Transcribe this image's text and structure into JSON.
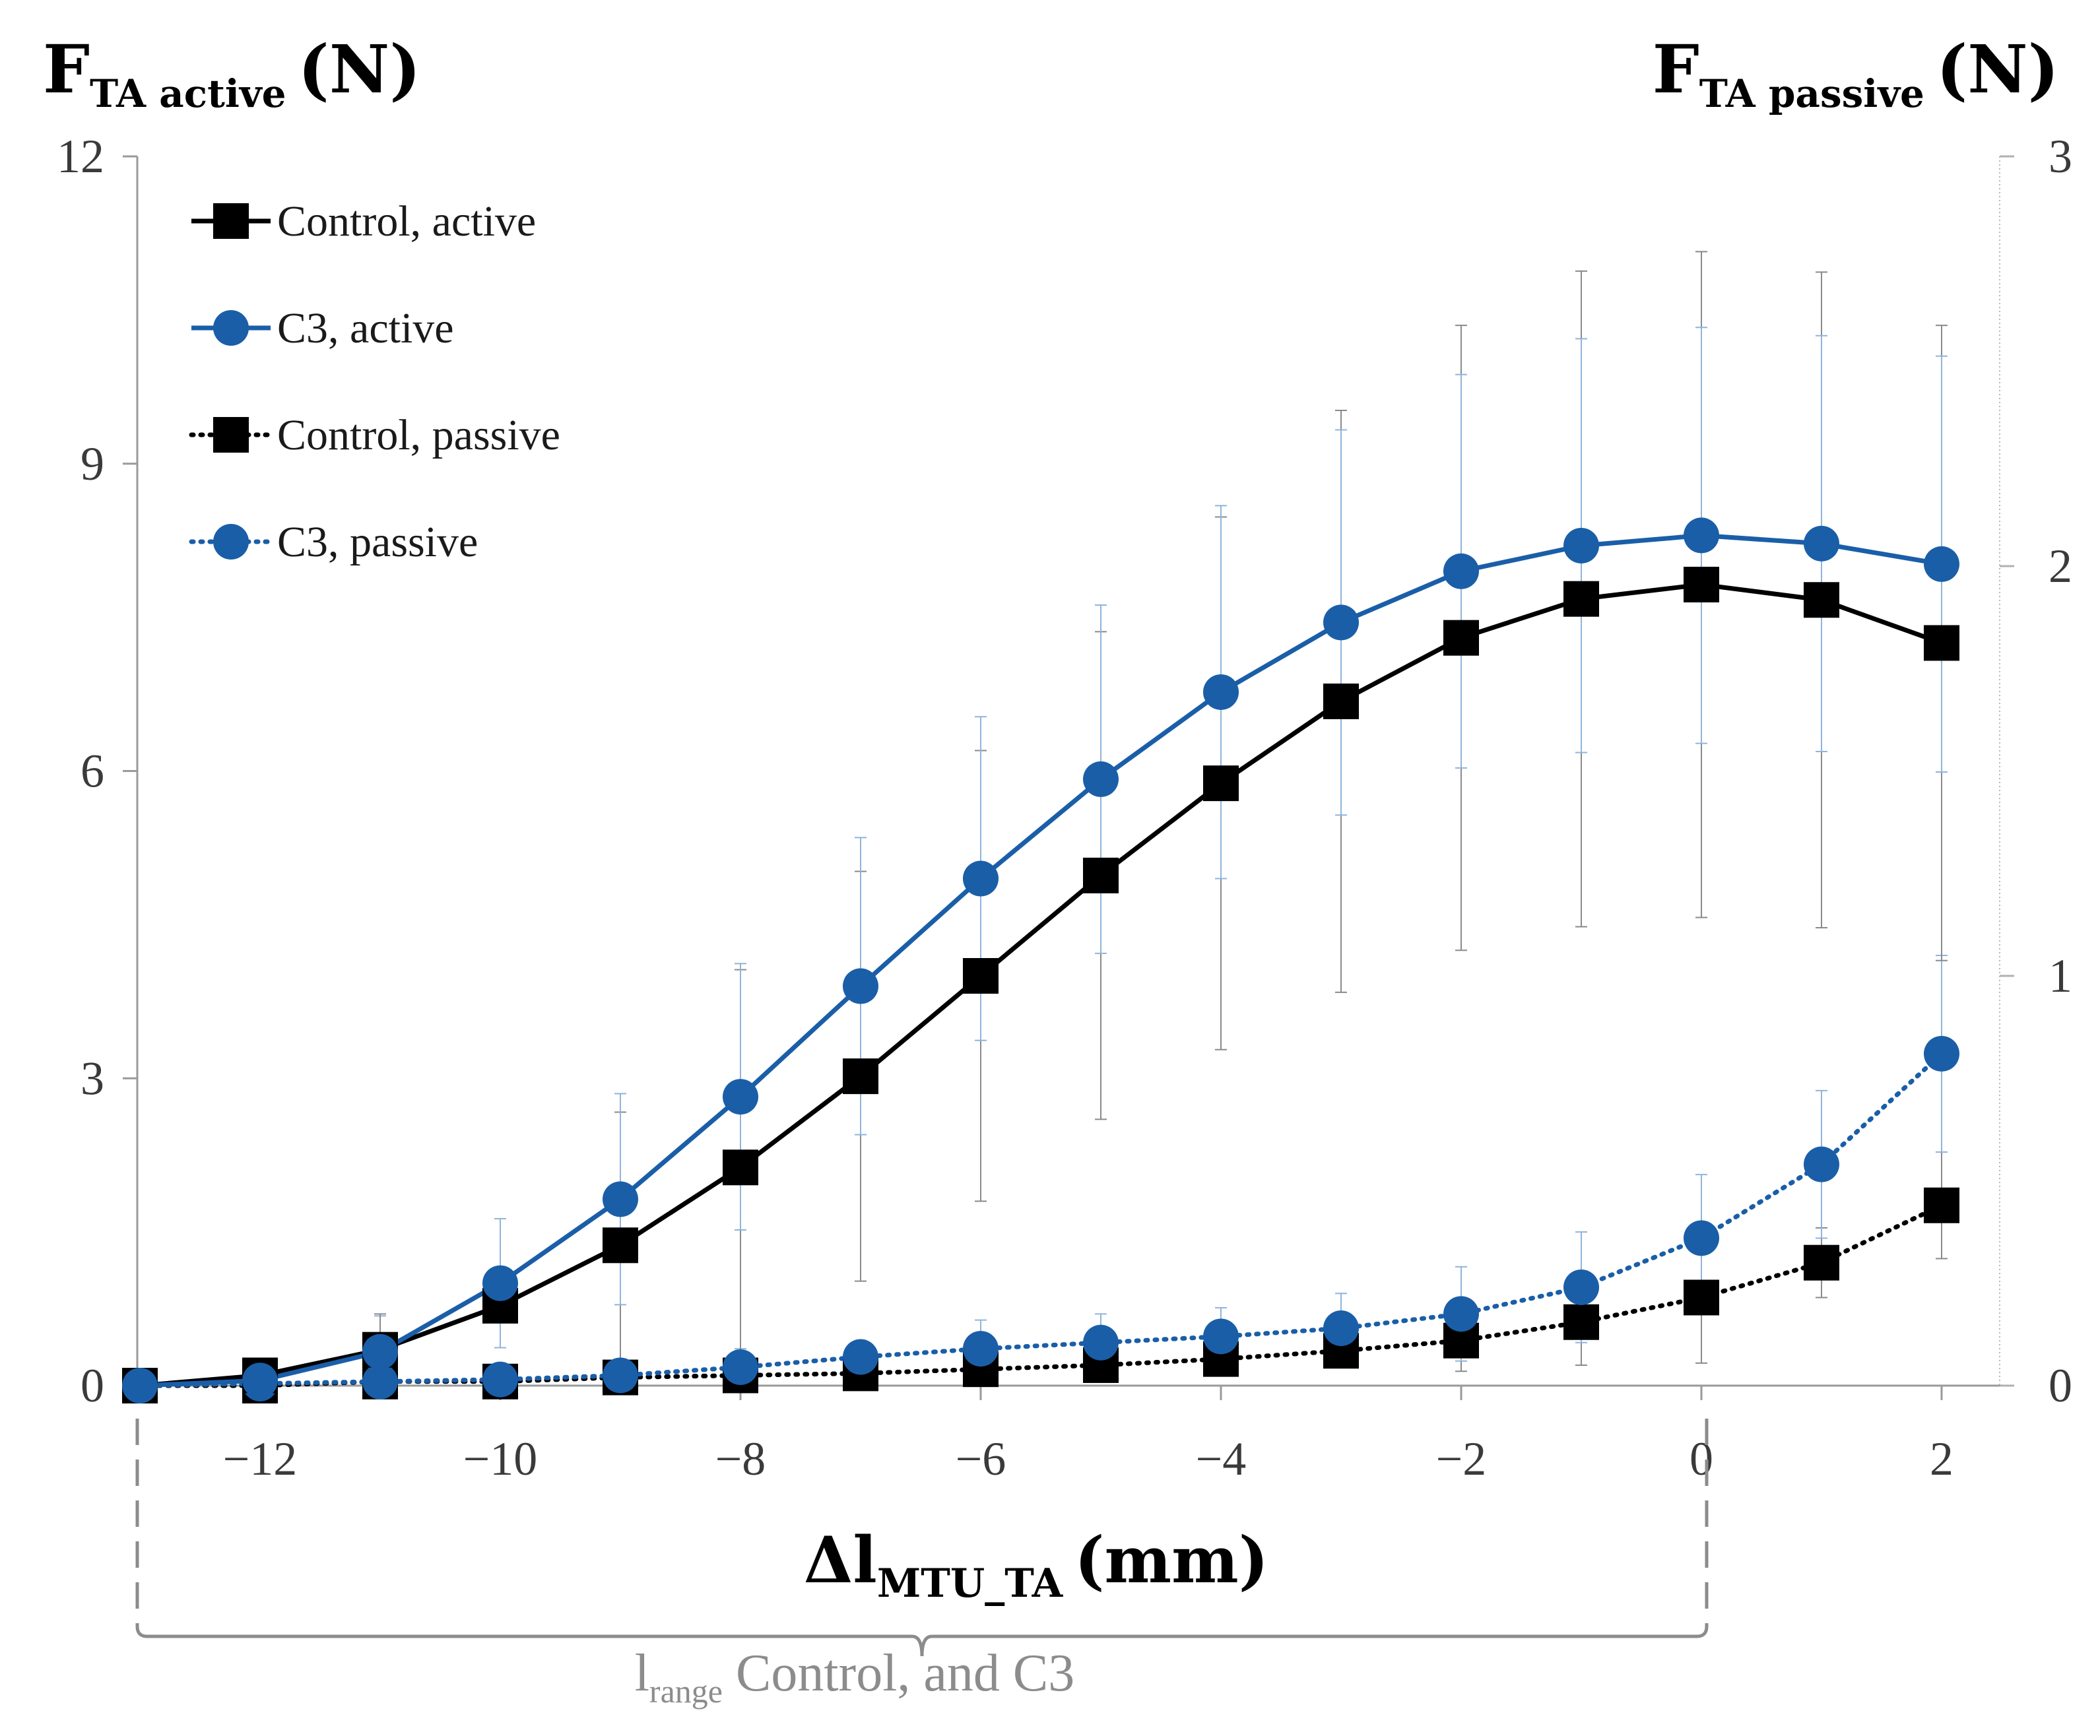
{
  "chart_data": {
    "type": "line",
    "x": [
      -13,
      -12,
      -11,
      -10,
      -9,
      -8,
      -7,
      -6,
      -5,
      -4,
      -3,
      -2,
      -1,
      0,
      1,
      2
    ],
    "xlim": [
      -13,
      2.5
    ],
    "xticks": [
      -12,
      -10,
      -8,
      -6,
      -4,
      -2,
      0,
      2
    ],
    "xtick_labels": [
      "−12",
      "−10",
      "−8",
      "−6",
      "−4",
      "−2",
      "0",
      "2"
    ],
    "y_left": {
      "label_main": "F",
      "label_sub": "TA active",
      "label_unit": "(N)",
      "lim": [
        0,
        12
      ],
      "ticks": [
        0,
        3,
        6,
        9,
        12
      ],
      "tick_labels": [
        "0",
        "3",
        "6",
        "9",
        "12"
      ]
    },
    "y_right": {
      "label_main": "F",
      "label_sub": "TA passive",
      "label_unit": "(N)",
      "lim": [
        0,
        3
      ],
      "ticks": [
        0,
        1,
        2,
        3
      ],
      "tick_labels": [
        "0",
        "1",
        "2",
        "3"
      ]
    },
    "xlabel": {
      "prefix": "Δl",
      "sub": "MTU_TA",
      "unit": "(mm)"
    },
    "range_label": {
      "main": "l",
      "sub": "range",
      "rest": " Control, and C3",
      "from": -13,
      "to": 0
    },
    "legend_position": "top-left",
    "series": [
      {
        "name": "Control, active",
        "axis": "left",
        "color": "#000000",
        "marker": "square",
        "linestyle": "solid",
        "values": [
          0,
          0.1,
          0.35,
          0.78,
          1.37,
          2.13,
          3.02,
          4.0,
          4.98,
          5.88,
          6.68,
          7.3,
          7.68,
          7.82,
          7.67,
          7.25
        ],
        "errors": [
          null,
          null,
          0.35,
          null,
          1.3,
          1.93,
          2.0,
          2.2,
          2.38,
          2.6,
          2.84,
          3.05,
          3.2,
          3.25,
          3.2,
          3.1
        ]
      },
      {
        "name": "C3, active",
        "axis": "left",
        "color": "#1a5ea8",
        "marker": "circle",
        "linestyle": "solid",
        "values": [
          0,
          0.05,
          0.33,
          1.0,
          1.82,
          2.82,
          3.9,
          4.95,
          5.92,
          6.77,
          7.45,
          7.95,
          8.2,
          8.3,
          8.22,
          8.02
        ],
        "errors": [
          null,
          null,
          null,
          0.63,
          1.03,
          1.3,
          1.45,
          1.58,
          1.7,
          1.82,
          1.88,
          1.92,
          2.02,
          2.03,
          2.03,
          2.03
        ]
      },
      {
        "name": "Control, passive",
        "axis": "right",
        "color": "#000000",
        "marker": "square",
        "linestyle": "dotted",
        "values": [
          0,
          0.0,
          0.01,
          0.01,
          0.02,
          0.025,
          0.03,
          0.04,
          0.05,
          0.065,
          0.085,
          0.11,
          0.155,
          0.215,
          0.3,
          0.44
        ],
        "errors": [
          null,
          null,
          null,
          null,
          null,
          null,
          null,
          null,
          null,
          null,
          null,
          0.075,
          0.105,
          0.16,
          0.085,
          0.13
        ]
      },
      {
        "name": "C3, passive",
        "axis": "right",
        "color": "#1a5ea8",
        "marker": "circle",
        "linestyle": "dotted",
        "values": [
          0,
          0.005,
          0.01,
          0.015,
          0.025,
          0.045,
          0.07,
          0.09,
          0.105,
          0.12,
          0.14,
          0.175,
          0.24,
          0.36,
          0.54,
          0.81
        ],
        "errors": [
          null,
          null,
          0.16,
          null,
          null,
          0.045,
          null,
          0.07,
          0.07,
          0.07,
          0.085,
          0.115,
          0.135,
          0.155,
          0.18,
          0.24
        ]
      }
    ]
  }
}
